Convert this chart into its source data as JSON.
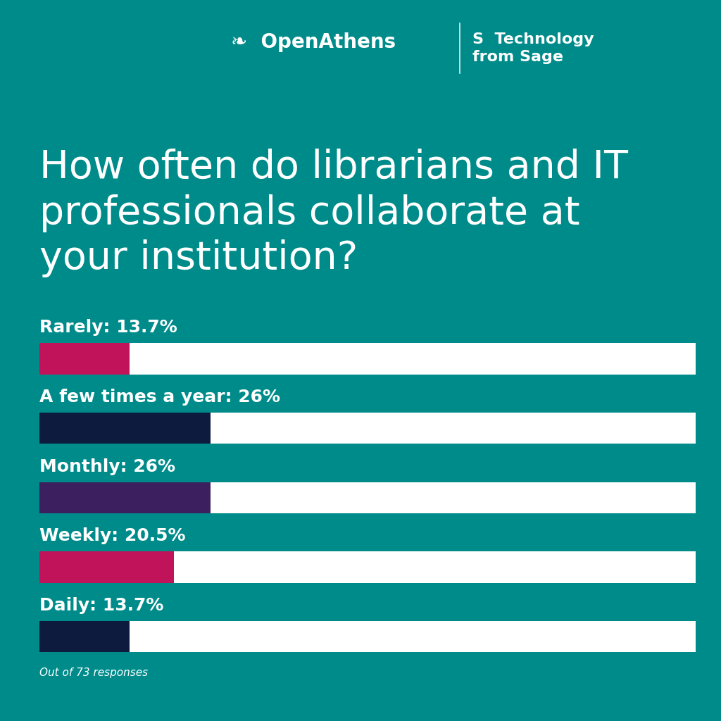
{
  "background_color": "#008B8B",
  "title_lines": [
    "How often do librarians and IT",
    "professionals collaborate at",
    "your institution?"
  ],
  "title_fontsize": 40,
  "title_color": "#ffffff",
  "categories": [
    "Rarely",
    "A few times a year",
    "Monthly",
    "Weekly",
    "Daily"
  ],
  "labels": [
    "Rarely: 13.7%",
    "A few times a year: 26%",
    "Monthly: 26%",
    "Weekly: 20.5%",
    "Daily: 13.7%"
  ],
  "values": [
    13.7,
    26.0,
    26.0,
    20.5,
    13.7
  ],
  "bar_colors": [
    "#c0135a",
    "#0d1b3e",
    "#3b1f5e",
    "#c0135a",
    "#0d1b3e"
  ],
  "bar_bg_color": "#ffffff",
  "label_color": "#ffffff",
  "label_fontsize": 18,
  "footnote": "Out of 73 responses",
  "footnote_fontsize": 11,
  "footnote_color": "#ffffff",
  "max_value": 100,
  "bar_height": 0.45,
  "openathens_text": "OpenAthens",
  "sage_text": "Technology\nfrom Sage",
  "header_fontsize": 20,
  "sage_fontsize": 16
}
